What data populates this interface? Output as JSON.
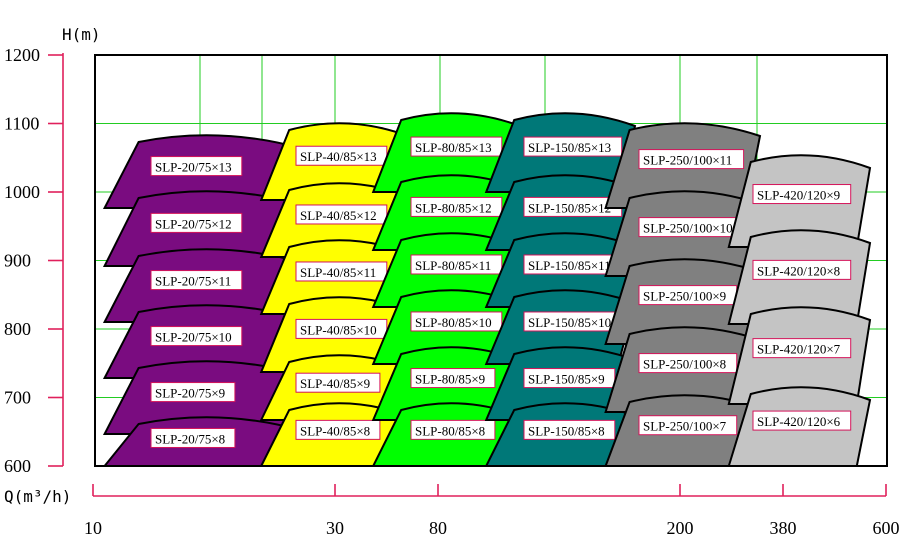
{
  "chart_data": {
    "type": "pump-selection-chart",
    "title": "",
    "ylabel": "H(m)",
    "xlabel": "Q(m³/h)",
    "yticks": [
      1200,
      1100,
      1000,
      900,
      800,
      700,
      600
    ],
    "xticks": [
      "10",
      "30",
      "80",
      "200",
      "380",
      "600"
    ],
    "ylim": [
      600,
      1200
    ],
    "grid": true,
    "colors": {
      "axis": "#e0205c",
      "grid": "#22cc22",
      "outline": "#000000",
      "label_border": "#d4145a",
      "purple": "#7a0c80",
      "yellow": "#ffff00",
      "green": "#00ff00",
      "teal": "#007878",
      "dark_gray": "#808080",
      "light_gray": "#c4c4c4"
    },
    "families": [
      {
        "name": "SLP-20/75",
        "color": "purple",
        "models": [
          "SLP-20/75×13",
          "SLP-20/75×12",
          "SLP-20/75×11",
          "SLP-20/75×10",
          "SLP-20/75×9",
          "SLP-20/75×8"
        ]
      },
      {
        "name": "SLP-40/85",
        "color": "yellow",
        "models": [
          "SLP-40/85×13",
          "SLP-40/85×12",
          "SLP-40/85×11",
          "SLP-40/85×10",
          "SLP-40/85×9",
          "SLP-40/85×8"
        ]
      },
      {
        "name": "SLP-80/85",
        "color": "green",
        "models": [
          "SLP-80/85×13",
          "SLP-80/85×12",
          "SLP-80/85×11",
          "SLP-80/85×10",
          "SLP-80/85×9",
          "SLP-80/85×8"
        ]
      },
      {
        "name": "SLP-150/85",
        "color": "teal",
        "models": [
          "SLP-150/85×13",
          "SLP-150/85×12",
          "SLP-150/85×11",
          "SLP-150/85×10",
          "SLP-150/85×9",
          "SLP-150/85×8"
        ]
      },
      {
        "name": "SLP-250/100",
        "color": "dark_gray",
        "models": [
          "SLP-250/100×11",
          "SLP-250/100×10",
          "SLP-250/100×9",
          "SLP-250/100×8",
          "SLP-250/100×7"
        ]
      },
      {
        "name": "SLP-420/120",
        "color": "light_gray",
        "models": [
          "SLP-420/120×9",
          "SLP-420/120×8",
          "SLP-420/120×7",
          "SLP-420/120×6"
        ]
      }
    ]
  }
}
